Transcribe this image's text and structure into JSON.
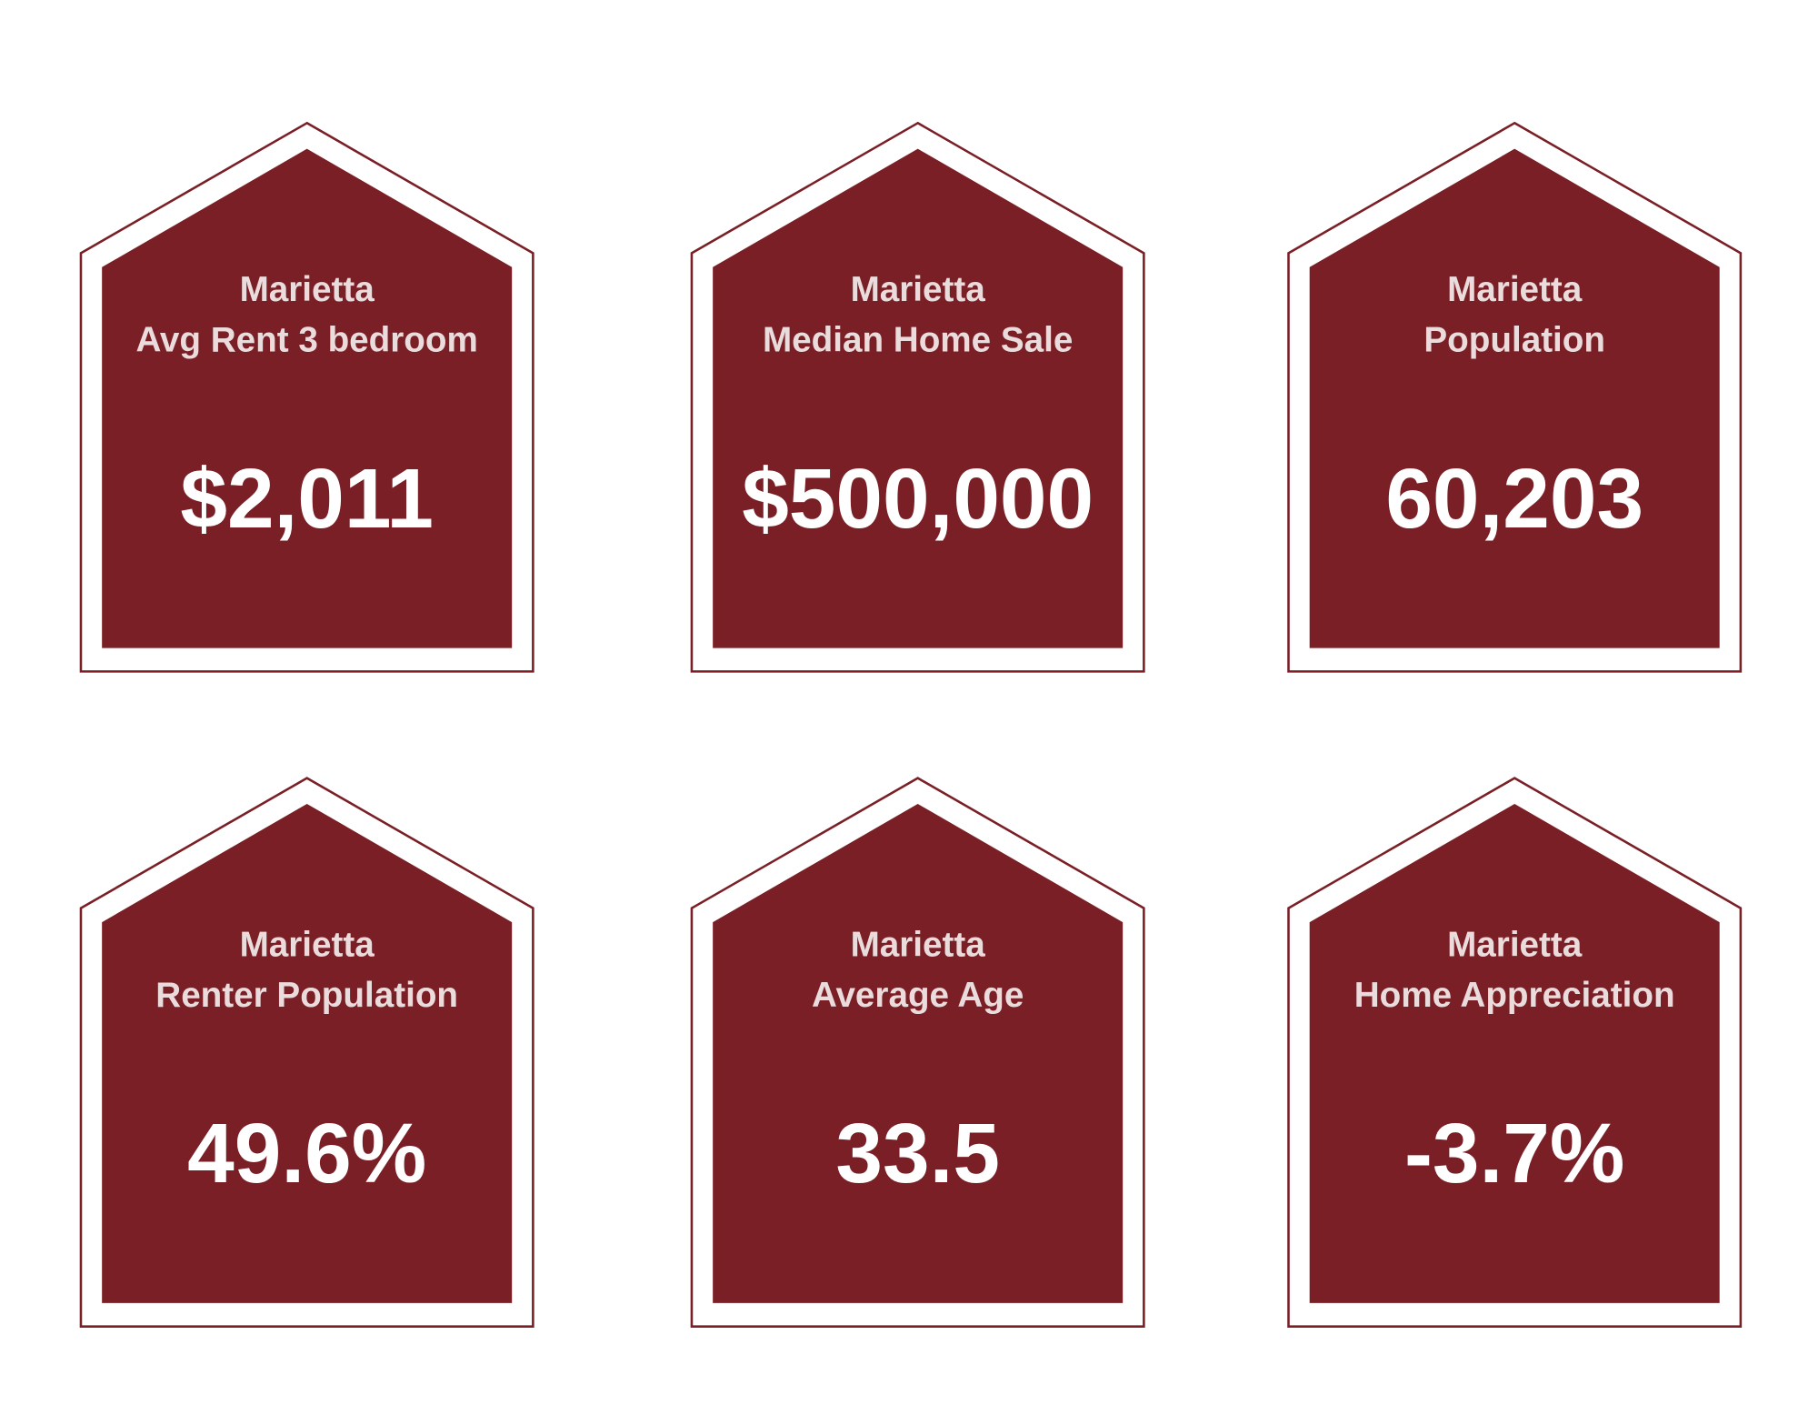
{
  "cards": [
    {
      "city": "Marietta",
      "label": "Avg Rent 3 bedroom",
      "value": "$2,011"
    },
    {
      "city": "Marietta",
      "label": "Median Home Sale",
      "value": "$500,000"
    },
    {
      "city": "Marietta",
      "label": "Population",
      "value": "60,203"
    },
    {
      "city": "Marietta",
      "label": "Renter Population",
      "value": "49.6%"
    },
    {
      "city": "Marietta",
      "label": "Average Age",
      "value": "33.5"
    },
    {
      "city": "Marietta",
      "label": "Home Appreciation",
      "value": "-3.7%"
    }
  ]
}
